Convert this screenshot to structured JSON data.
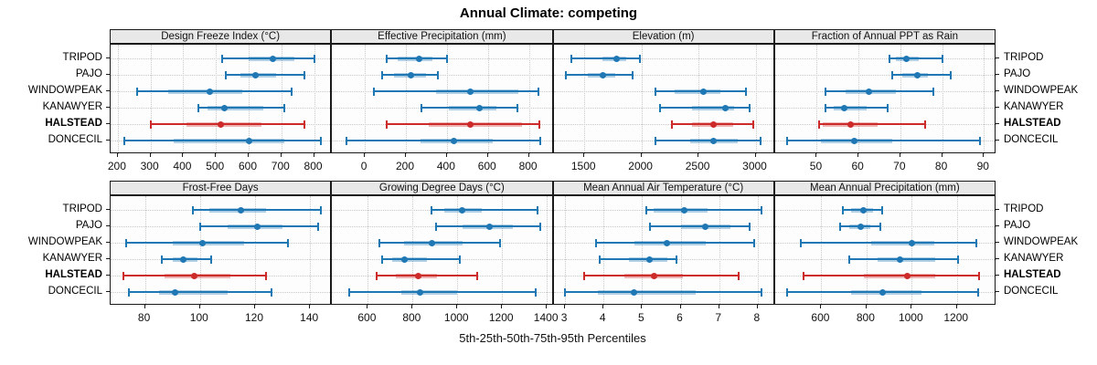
{
  "title": "Annual Climate: competing",
  "xlabel": "5th-25th-50th-75th-95th Percentiles",
  "sites": [
    "TRIPOD",
    "PAJO",
    "WINDOWPEAK",
    "KANAWYER",
    "HALSTEAD",
    "DONCECIL"
  ],
  "highlight_site": "HALSTEAD",
  "colors": {
    "series": "#1f77b4",
    "highlight": "#cd2a2a",
    "strip_bg": "#e8e8e8",
    "grid": "#c8c8c8",
    "border": "#1a1a1a"
  },
  "chart_data": {
    "type": "percentile-dotplot",
    "percentile_labels": [
      "5th",
      "25th",
      "50th",
      "75th",
      "95th"
    ],
    "grid": {
      "rows": 2,
      "cols": 4
    },
    "panels": [
      {
        "title": "Design Freeze Index (°C)",
        "row": 0,
        "col": 0,
        "domain": [
          178,
          855
        ],
        "ticks": [
          200,
          300,
          400,
          500,
          600,
          700,
          800
        ],
        "values": {
          "TRIPOD": [
            520,
            600,
            675,
            740,
            800
          ],
          "PAJO": [
            530,
            575,
            620,
            685,
            770
          ],
          "WINDOWPEAK": [
            260,
            355,
            480,
            580,
            730
          ],
          "KANAWYER": [
            445,
            475,
            525,
            645,
            710
          ],
          "HALSTEAD": [
            300,
            410,
            515,
            640,
            770
          ],
          "DONCECIL": [
            220,
            370,
            600,
            710,
            820
          ]
        }
      },
      {
        "title": "Effective Precipitation (mm)",
        "row": 0,
        "col": 1,
        "domain": [
          -160,
          920
        ],
        "ticks": [
          0,
          200,
          400,
          600,
          800
        ],
        "values": {
          "TRIPOD": [
            105,
            160,
            265,
            330,
            400
          ],
          "PAJO": [
            85,
            140,
            225,
            300,
            355
          ],
          "WINDOWPEAK": [
            45,
            345,
            515,
            750,
            845
          ],
          "KANAWYER": [
            275,
            410,
            560,
            640,
            745
          ],
          "HALSTEAD": [
            105,
            310,
            515,
            765,
            850
          ],
          "DONCECIL": [
            -90,
            270,
            435,
            625,
            855
          ]
        }
      },
      {
        "title": "Elevation (m)",
        "row": 0,
        "col": 2,
        "domain": [
          1230,
          3170
        ],
        "ticks": [
          1500,
          2000,
          2500,
          3000
        ],
        "values": {
          "TRIPOD": [
            1390,
            1660,
            1780,
            1870,
            1990
          ],
          "PAJO": [
            1340,
            1530,
            1665,
            1770,
            1920
          ],
          "WINDOWPEAK": [
            2120,
            2290,
            2540,
            2695,
            2915
          ],
          "KANAWYER": [
            2165,
            2440,
            2735,
            2815,
            2950
          ],
          "HALSTEAD": [
            2270,
            2440,
            2630,
            2805,
            2980
          ],
          "DONCECIL": [
            2125,
            2425,
            2630,
            2845,
            3045
          ]
        }
      },
      {
        "title": "Fraction of Annual PPT as Rain",
        "row": 0,
        "col": 3,
        "domain": [
          40,
          93
        ],
        "ticks": [
          50,
          60,
          70,
          80,
          90
        ],
        "values": {
          "TRIPOD": [
            67.5,
            69,
            71.5,
            74.5,
            80
          ],
          "PAJO": [
            68,
            70.5,
            74,
            76.5,
            82
          ],
          "WINDOWPEAK": [
            52,
            57,
            62.5,
            69,
            78
          ],
          "KANAWYER": [
            52,
            54,
            56.5,
            62,
            67
          ],
          "HALSTEAD": [
            50.5,
            51.5,
            58,
            64.5,
            76
          ],
          "DONCECIL": [
            43,
            51,
            59,
            68,
            89
          ]
        }
      },
      {
        "title": "Frost-Free Days",
        "row": 1,
        "col": 0,
        "domain": [
          67.5,
          148
        ],
        "ticks": [
          80,
          100,
          120,
          140
        ],
        "values": {
          "TRIPOD": [
            97.5,
            103.5,
            115,
            124,
            144
          ],
          "PAJO": [
            100,
            110,
            121,
            130,
            143
          ],
          "WINDOWPEAK": [
            73,
            90,
            101,
            116,
            132
          ],
          "KANAWYER": [
            86,
            90,
            94,
            99,
            104
          ],
          "HALSTEAD": [
            72,
            87,
            98,
            111,
            124
          ],
          "DONCECIL": [
            74,
            85,
            91,
            110,
            126
          ]
        }
      },
      {
        "title": "Growing Degree Days (°C)",
        "row": 1,
        "col": 1,
        "domain": [
          440,
          1430
        ],
        "ticks": [
          600,
          800,
          1000,
          1200,
          1400
        ],
        "values": {
          "TRIPOD": [
            885,
            940,
            1020,
            1110,
            1360
          ],
          "PAJO": [
            905,
            1025,
            1145,
            1250,
            1370
          ],
          "WINDOWPEAK": [
            650,
            760,
            885,
            1025,
            1190
          ],
          "KANAWYER": [
            665,
            710,
            765,
            865,
            1010
          ],
          "HALSTEAD": [
            640,
            725,
            825,
            910,
            1090
          ],
          "DONCECIL": [
            515,
            750,
            835,
            1000,
            1350
          ]
        }
      },
      {
        "title": "Mean Annual Air Temperature (°C)",
        "row": 1,
        "col": 2,
        "domain": [
          2.7,
          8.45
        ],
        "ticks": [
          3,
          4,
          5,
          6,
          7,
          8
        ],
        "values": {
          "TRIPOD": [
            5.1,
            5.3,
            6.1,
            6.7,
            8.1
          ],
          "PAJO": [
            5.2,
            6.0,
            6.65,
            7.3,
            7.8
          ],
          "WINDOWPEAK": [
            3.8,
            4.8,
            5.65,
            6.65,
            7.9
          ],
          "KANAWYER": [
            3.9,
            4.65,
            5.2,
            5.65,
            5.9
          ],
          "HALSTEAD": [
            3.5,
            4.55,
            5.3,
            6.05,
            7.5
          ],
          "DONCECIL": [
            3.0,
            3.85,
            4.8,
            6.4,
            8.1
          ]
        }
      },
      {
        "title": "Mean Annual Precipitation (mm)",
        "row": 1,
        "col": 3,
        "domain": [
          395,
          1375
        ],
        "ticks": [
          600,
          800,
          1000,
          1200
        ],
        "values": {
          "TRIPOD": [
            695,
            730,
            785,
            830,
            870
          ],
          "PAJO": [
            685,
            725,
            775,
            815,
            860
          ],
          "WINDOWPEAK": [
            510,
            820,
            1000,
            1100,
            1285
          ],
          "KANAWYER": [
            725,
            850,
            950,
            1105,
            1205
          ],
          "HALSTEAD": [
            520,
            790,
            980,
            1105,
            1300
          ],
          "DONCECIL": [
            450,
            730,
            870,
            1045,
            1295
          ]
        }
      }
    ]
  }
}
